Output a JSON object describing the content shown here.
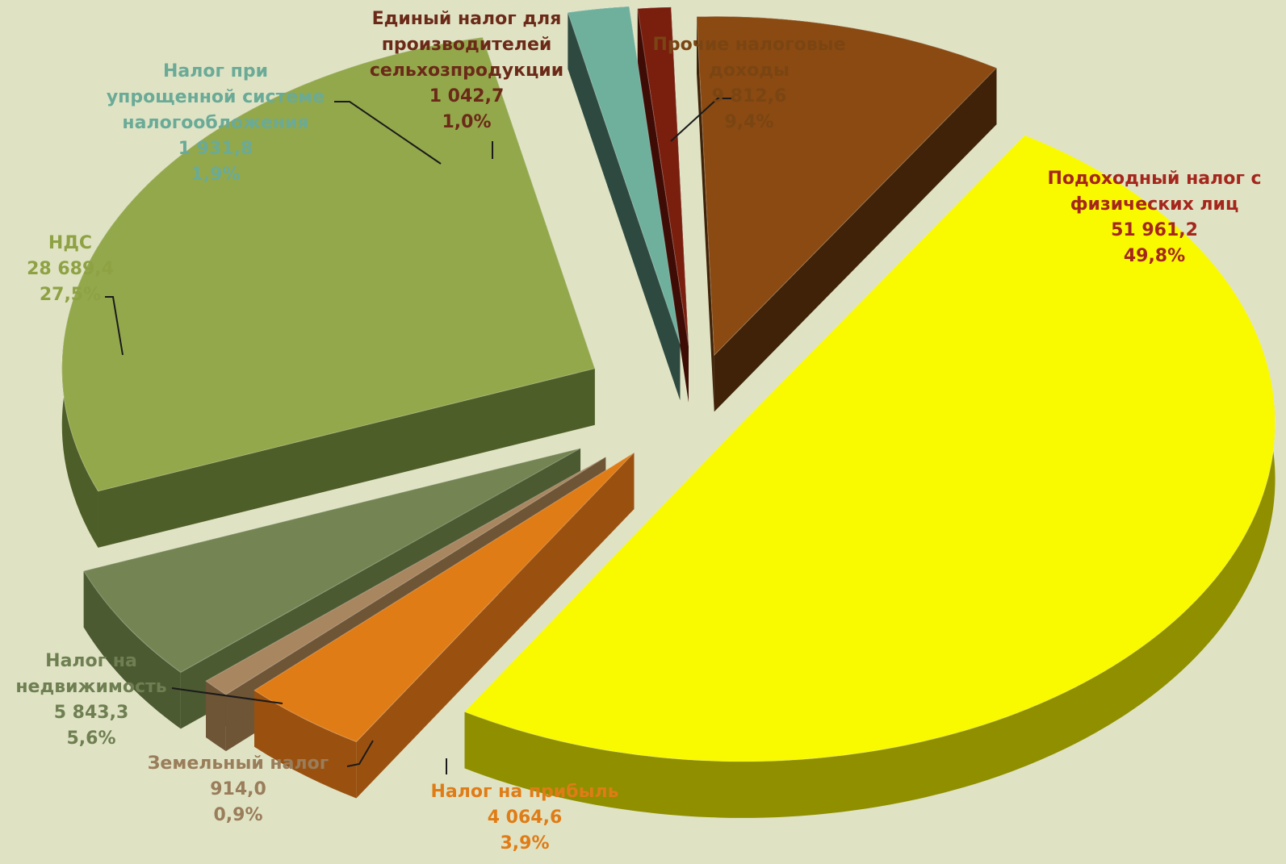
{
  "chart_data": {
    "type": "pie",
    "title": "",
    "slices": [
      {
        "name": "Подоходный налог с физических лиц",
        "value": "51 961,2",
        "percent": "49,8%",
        "top": "#f9f900",
        "side": "#8f8f00",
        "label_color": "#a5261c"
      },
      {
        "name": "Налог на прибыль",
        "value": "4 064,6",
        "percent": "3,9%",
        "top": "#e07c16",
        "side": "#9a5110",
        "label_color": "#e07c16"
      },
      {
        "name": "Земельный налог",
        "value": "914,0",
        "percent": "0,9%",
        "top": "#a88660",
        "side": "#6e5536",
        "label_color": "#9a7d5a"
      },
      {
        "name": "Налог на недвижимость",
        "value": "5 843,3",
        "percent": "5,6%",
        "top": "#748553",
        "side": "#4c5a32",
        "label_color": "#6f7f52"
      },
      {
        "name": "НДС",
        "value": "28 689,4",
        "percent": "27,5%",
        "top": "#93a84b",
        "side": "#4e5e28",
        "label_color": "#8ea244"
      },
      {
        "name": "Налог при упрощенной системе налогообложения",
        "value": "1 931,8",
        "percent": "1,9%",
        "top": "#6fb09d",
        "side": "#2e4a40",
        "label_color": "#6aaa97"
      },
      {
        "name": "Единый налог для производителей сельхозпродукции",
        "value": "1 042,7",
        "percent": "1,0%",
        "top": "#7a1e0e",
        "side": "#3e0c05",
        "label_color": "#6b2a18"
      },
      {
        "name": "Прочие налоговые доходы",
        "value": "9 812,6",
        "percent": "9,4%",
        "top": "#8a4a12",
        "side": "#3f2207",
        "label_color": "#7a4512"
      }
    ],
    "labels": [
      {
        "lines": [
          "Подоходный налог с",
          "физических лиц",
          "51 961,2",
          "49,8%"
        ]
      },
      {
        "lines": [
          "Налог на прибыль",
          "4 064,6",
          "3,9%"
        ]
      },
      {
        "lines": [
          "Земельный налог",
          "914,0",
          "0,9%"
        ]
      },
      {
        "lines": [
          "Налог на",
          "недвижимость",
          "5 843,3",
          "5,6%"
        ]
      },
      {
        "lines": [
          "НДС",
          "28 689,4",
          "27,5%"
        ]
      },
      {
        "lines": [
          "Налог при",
          "упрощенной системе",
          "налогообложения",
          "1 931,8",
          "1,9%"
        ]
      },
      {
        "lines": [
          "Единый налог для",
          "производителей",
          "сельхозпродукции",
          "1 042,7",
          "1,0%"
        ]
      },
      {
        "lines": [
          "Прочие налоговые",
          "доходы",
          "9 812,6",
          "9,4%"
        ]
      }
    ]
  }
}
